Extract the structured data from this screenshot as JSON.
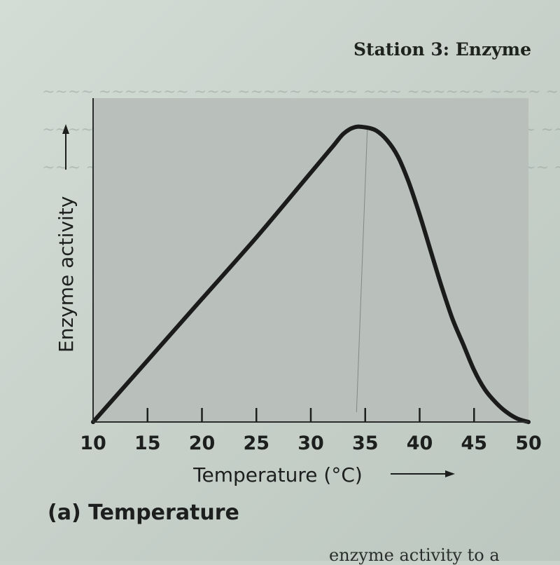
{
  "header": {
    "station_title": "Station 3: Enzyme"
  },
  "figure": {
    "caption": "(a) Temperature"
  },
  "footer_text": "enzyme activity to a",
  "colors": {
    "plot_background": "#b9c0bc",
    "curve": "#1b1b1b",
    "page": "#c9d3cc"
  },
  "chart_data": {
    "type": "line",
    "title": "",
    "xlabel": "Temperature (°C)",
    "ylabel": "Enzyme activity",
    "xlim": [
      10,
      50
    ],
    "ylim": [
      0,
      1
    ],
    "xticks": [
      10,
      15,
      20,
      25,
      30,
      35,
      40,
      45,
      50
    ],
    "tick_labels": [
      "10",
      "15",
      "20",
      "25",
      "30",
      "35",
      "40",
      "45",
      "50"
    ],
    "grid": false,
    "series": [
      {
        "x": [
          10,
          15,
          20,
          25,
          30,
          32,
          33,
          34,
          35,
          36,
          37,
          38,
          39,
          40,
          41,
          42,
          43,
          44,
          45,
          46,
          47,
          48,
          49,
          50
        ],
        "y": [
          0.0,
          0.19,
          0.38,
          0.57,
          0.77,
          0.85,
          0.89,
          0.91,
          0.91,
          0.9,
          0.87,
          0.82,
          0.74,
          0.64,
          0.53,
          0.42,
          0.32,
          0.24,
          0.16,
          0.1,
          0.06,
          0.03,
          0.01,
          0.0
        ]
      }
    ]
  }
}
